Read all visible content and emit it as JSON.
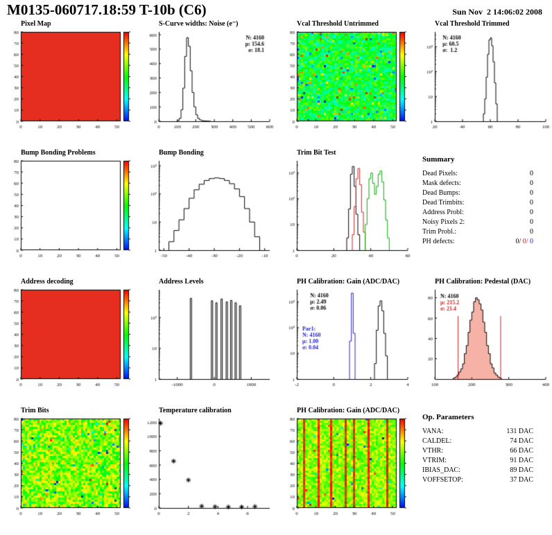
{
  "header": {
    "title": "M0135-060717.18:59 T-10b (C6)",
    "timestamp": "Sun Nov  2 14:06:02 2008"
  },
  "summary": {
    "title": "Summary",
    "rows": [
      {
        "label": "Dead Pixels:",
        "value": "0"
      },
      {
        "label": "Mask defects:",
        "value": "0"
      },
      {
        "label": "Dead Bumps:",
        "value": "0"
      },
      {
        "label": "Dead Trimbits:",
        "value": "0"
      },
      {
        "label": "Address Probl:",
        "value": "0"
      },
      {
        "label": "Noisy Pixels 2:",
        "value": "0"
      },
      {
        "label": "Trim Probl.:",
        "value": "0"
      }
    ],
    "ph_defects": {
      "label": "PH defects:",
      "parts": [
        {
          "text": "0/",
          "color": "#000000"
        },
        {
          "text": " 0/",
          "color": "#cc2222"
        },
        {
          "text": " 0",
          "color": "#2222cc"
        }
      ]
    }
  },
  "op_parameters": {
    "title": "Op. Parameters",
    "rows": [
      {
        "label": "VANA:",
        "value": "131 DAC"
      },
      {
        "label": "CALDEL:",
        "value": "74 DAC"
      },
      {
        "label": "VTHR:",
        "value": "66 DAC"
      },
      {
        "label": "VTRIM:",
        "value": "91 DAC"
      },
      {
        "label": "IBIAS_DAC:",
        "value": "89 DAC"
      },
      {
        "label": "VOFFSETOP:",
        "value": "37 DAC"
      }
    ]
  },
  "chart_data": [
    {
      "type": "heatmap",
      "title": "Pixel Map",
      "x": {
        "min": 0,
        "max": 52,
        "ticks": [
          0,
          10,
          20,
          30,
          40,
          50
        ]
      },
      "y": {
        "min": 0,
        "max": 80,
        "ticks": [
          0,
          10,
          20,
          30,
          40,
          50,
          60,
          70,
          80
        ]
      },
      "fill": "uniform",
      "color": "#e62e20",
      "colorbar": true
    },
    {
      "type": "hist",
      "title": "S-Curve widths: Noise (e⁻)",
      "x": {
        "min": 0,
        "max": 600,
        "ticks": [
          0,
          100,
          200,
          300,
          400,
          500,
          600
        ]
      },
      "y": {
        "min": 0,
        "max": 620,
        "ticks": [
          0,
          100,
          200,
          300,
          400,
          500,
          600
        ]
      },
      "series": [
        {
          "color": "#000000",
          "x0": 100,
          "w": 10,
          "counts": [
            5,
            20,
            80,
            230,
            450,
            580,
            520,
            350,
            200,
            100,
            45,
            20,
            10,
            5,
            3,
            2,
            1,
            1
          ]
        }
      ],
      "stats": [
        {
          "fx": 0.95,
          "fy": 0.03,
          "align": "right",
          "lines": [
            {
              "t": "N: 4160",
              "c": "#000000"
            },
            {
              "t": "μ: 154.6",
              "c": "#000000"
            },
            {
              "t": "σ: 18.1",
              "c": "#000000"
            }
          ]
        }
      ]
    },
    {
      "type": "heatmap",
      "title": "Vcal Threshold Untrimmed",
      "x": {
        "min": 0,
        "max": 52,
        "ticks": [
          0,
          10,
          20,
          30,
          40,
          50
        ]
      },
      "y": {
        "min": 0,
        "max": 80,
        "ticks": [
          0,
          10,
          20,
          30,
          40,
          50,
          60,
          70,
          80
        ]
      },
      "fill": "noise",
      "t0": 0.3,
      "t1": 0.62,
      "speckle": 0.1,
      "colorbar": true
    },
    {
      "type": "hist",
      "title": "Vcal Threshold Trimmed",
      "x": {
        "min": 20,
        "max": 100,
        "ticks": [
          20,
          40,
          60,
          80,
          100
        ]
      },
      "y": {
        "log": true,
        "min": 1,
        "max": 4000,
        "ticks": [
          [
            1,
            "1"
          ],
          [
            10,
            "10"
          ],
          [
            100,
            "10²"
          ],
          [
            1000,
            "10³"
          ]
        ]
      },
      "series": [
        {
          "color": "#000000",
          "x0": 55,
          "w": 1,
          "counts": [
            2,
            8,
            60,
            500,
            1900,
            2300,
            1100,
            250,
            35,
            5
          ]
        }
      ],
      "stats": [
        {
          "fx": 0.07,
          "fy": 0.03,
          "align": "left",
          "lines": [
            {
              "t": "N: 4160",
              "c": "#000000"
            },
            {
              "t": "μ: 60.5",
              "c": "#000000"
            },
            {
              "t": "σ:  1.2",
              "c": "#000000"
            }
          ]
        }
      ]
    },
    {
      "type": "heatmap",
      "title": "Bump Bonding Problems",
      "x": {
        "min": 0,
        "max": 52,
        "ticks": [
          0,
          10,
          20,
          30,
          40,
          50
        ]
      },
      "y": {
        "min": 0,
        "max": 80,
        "ticks": [
          0,
          10,
          20,
          30,
          40,
          50,
          60,
          70,
          80
        ]
      },
      "fill": "empty",
      "colorbar": true
    },
    {
      "type": "hist",
      "title": "Bump Bonding",
      "x": {
        "min": -52,
        "max": -8,
        "ticks": [
          -50,
          -40,
          -30,
          -20,
          -10
        ]
      },
      "y": {
        "log": true,
        "min": 1,
        "max": 1500,
        "ticks": [
          [
            1,
            "1"
          ],
          [
            10,
            "10"
          ],
          [
            100,
            "10²"
          ],
          [
            1000,
            "10³"
          ]
        ]
      },
      "series": [
        {
          "color": "#000000",
          "x0": -48,
          "w": 2,
          "counts": [
            2,
            5,
            12,
            30,
            70,
            140,
            220,
            300,
            350,
            370,
            350,
            300,
            230,
            150,
            80,
            30,
            10,
            3
          ]
        }
      ]
    },
    {
      "type": "hist",
      "title": "Trim Bit Test",
      "x": {
        "min": 0,
        "max": 60,
        "ticks": [
          0,
          20,
          40,
          60
        ]
      },
      "y": {
        "log": true,
        "min": 1,
        "max": 3000,
        "ticks": [
          [
            1,
            "1"
          ],
          [
            10,
            "10"
          ],
          [
            100,
            "10²"
          ],
          [
            1000,
            "10³"
          ]
        ]
      },
      "series": [
        {
          "color": "#000000",
          "x0": 27,
          "w": 1,
          "counts": [
            3,
            40,
            900,
            1800,
            300,
            25,
            4
          ]
        },
        {
          "color": "#cc2222",
          "x0": 30,
          "w": 1,
          "counts": [
            4,
            50,
            600,
            1500,
            350,
            30,
            5
          ]
        },
        {
          "color": "#00aa00",
          "x0": 37,
          "w": 1,
          "counts": [
            10,
            100,
            600,
            1000,
            400,
            150,
            300,
            900,
            1200,
            450,
            90,
            15,
            3
          ]
        }
      ]
    },
    {
      "type": "heatmap",
      "title": "Address decoding",
      "x": {
        "min": 0,
        "max": 52,
        "ticks": [
          0,
          10,
          20,
          30,
          40,
          50
        ]
      },
      "y": {
        "min": 0,
        "max": 80,
        "ticks": [
          0,
          10,
          20,
          30,
          40,
          50,
          60,
          70,
          80
        ]
      },
      "fill": "uniform",
      "color": "#e62e20",
      "colorbar": true
    },
    {
      "type": "spikes",
      "title": "Address Levels",
      "x": {
        "min": -1500,
        "max": 1500,
        "ticks": [
          -1000,
          0,
          1000
        ]
      },
      "y": {
        "log": true,
        "min": 1,
        "max": 800,
        "ticks": [
          [
            1,
            "1"
          ],
          [
            10,
            "10"
          ],
          [
            100,
            "10²"
          ]
        ]
      },
      "spikes": [
        [
          -650,
          420
        ],
        [
          -80,
          350
        ],
        [
          40,
          300
        ],
        [
          180,
          400
        ],
        [
          320,
          320
        ],
        [
          440,
          360
        ],
        [
          560,
          300
        ],
        [
          680,
          240
        ]
      ]
    },
    {
      "type": "hist",
      "title": "PH Calibration: Gain (ADC/DAC)",
      "x": {
        "min": -2,
        "max": 4,
        "ticks": [
          -2,
          0,
          2,
          4
        ]
      },
      "y": {
        "log": true,
        "min": 1,
        "max": 3000,
        "ticks": [
          [
            1,
            "1"
          ],
          [
            10,
            "10"
          ],
          [
            100,
            "10²"
          ],
          [
            1000,
            "10³"
          ]
        ]
      },
      "series": [
        {
          "color": "#2222cc",
          "x0": 0.85,
          "w": 0.1,
          "counts": [
            30,
            2200,
            60
          ]
        },
        {
          "color": "#000000",
          "x0": 2.2,
          "w": 0.1,
          "counts": [
            4,
            80,
            700,
            1100,
            450,
            60,
            8
          ]
        }
      ],
      "stats": [
        {
          "fx": 0.12,
          "fy": 0.03,
          "align": "left",
          "lines": [
            {
              "t": "N: 4160",
              "c": "#000000"
            },
            {
              "t": "μ: 2.49",
              "c": "#000000"
            },
            {
              "t": "σ: 0.06",
              "c": "#000000"
            }
          ]
        },
        {
          "fx": 0.05,
          "fy": 0.4,
          "align": "left",
          "lines": [
            {
              "t": "Par1:",
              "c": "#2222cc"
            },
            {
              "t": "N: 4160",
              "c": "#2222cc"
            },
            {
              "t": "μ: 1.00",
              "c": "#2222cc"
            },
            {
              "t": "σ: 0.04",
              "c": "#2222cc"
            }
          ]
        }
      ]
    },
    {
      "type": "hist",
      "title": "PH Calibration: Pedestal (DAC)",
      "x": {
        "min": 100,
        "max": 400,
        "ticks": [
          100,
          200,
          300,
          400
        ]
      },
      "y": {
        "min": 0,
        "max": 88,
        "ticks": [
          20,
          40,
          60,
          80
        ]
      },
      "series": [
        {
          "color": "#000000",
          "fill": "rgba(235,85,60,0.45)",
          "x0": 150,
          "w": 5,
          "counts": [
            1,
            2,
            4,
            7,
            10,
            15,
            25,
            33,
            46,
            58,
            66,
            76,
            80,
            78,
            74,
            68,
            56,
            46,
            33,
            25,
            15,
            11,
            6,
            4,
            2,
            1
          ]
        }
      ],
      "vlines": [
        {
          "x": 163,
          "h": 62,
          "c": "#cc2222"
        },
        {
          "x": 278,
          "h": 62,
          "c": "#cc2222"
        }
      ],
      "stats": [
        {
          "fx": 0.05,
          "fy": 0.04,
          "align": "left",
          "lines": [
            {
              "t": "N: 4160",
              "c": "#000000"
            },
            {
              "t": "μ: 215.2",
              "c": "#cc2222"
            },
            {
              "t": "σ: 21.4",
              "c": "#cc2222"
            }
          ]
        }
      ]
    },
    {
      "type": "heatmap",
      "title": "Trim Bits",
      "x": {
        "min": 0,
        "max": 52,
        "ticks": [
          0,
          10,
          20,
          30,
          40,
          50
        ]
      },
      "y": {
        "min": 0,
        "max": 80,
        "ticks": [
          0,
          10,
          20,
          30,
          40,
          50,
          60,
          70,
          80
        ]
      },
      "fill": "noise",
      "t0": 0.45,
      "t1": 0.8,
      "speckle": 0.05,
      "colorbar": true
    },
    {
      "type": "scatter",
      "title": "Temperature calibration",
      "x": {
        "min": 0,
        "max": 7.5,
        "ticks": [
          0,
          2,
          4,
          6
        ]
      },
      "y": {
        "min": 0,
        "max": 1250,
        "ticks": [
          0,
          200,
          400,
          600,
          800,
          1000,
          1200
        ]
      },
      "points": [
        [
          0.12,
          1185
        ],
        [
          1.0,
          655
        ],
        [
          2.0,
          390
        ],
        [
          2.9,
          25
        ],
        [
          3.8,
          18
        ],
        [
          4.7,
          14
        ],
        [
          5.6,
          14
        ],
        [
          6.5,
          20
        ]
      ]
    },
    {
      "type": "heatmap",
      "title": "PH Calibration: Gain (ADC/DAC)",
      "x": {
        "min": 0,
        "max": 52,
        "ticks": [
          0,
          10,
          20,
          30,
          40,
          50
        ]
      },
      "y": {
        "min": 0,
        "max": 80,
        "ticks": [
          0,
          10,
          20,
          30,
          40,
          50,
          60,
          70,
          80
        ]
      },
      "fill": "noise",
      "t0": 0.52,
      "t1": 0.75,
      "speckle": 0.04,
      "stripes": [
        0.06,
        0.2,
        0.33,
        0.47,
        0.56,
        0.7,
        0.9
      ],
      "colorbar": true
    }
  ]
}
